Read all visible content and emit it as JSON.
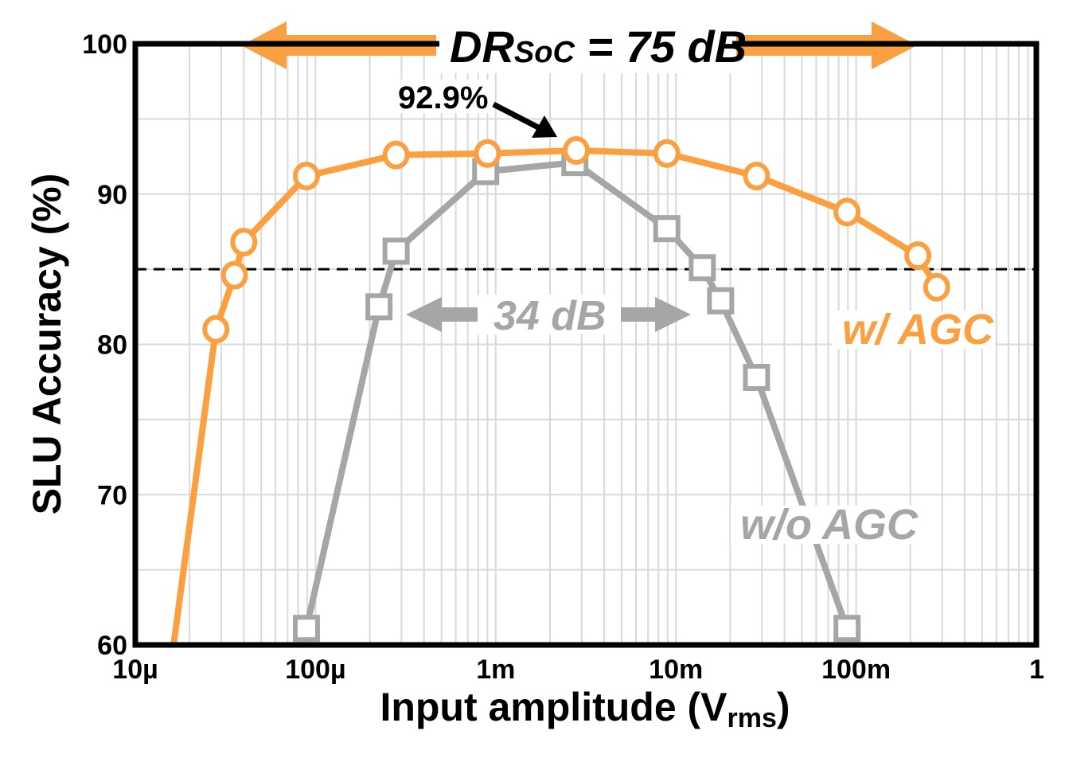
{
  "chart_data": {
    "type": "line",
    "title": "",
    "xlabel": "Input amplitude (V",
    "xlabel_sub": "rms",
    "xlabel_end": ")",
    "ylabel": "SLU Accuracy (%)",
    "xscale": "log",
    "xlim": [
      1e-05,
      1
    ],
    "ylim": [
      60,
      100
    ],
    "grid": true,
    "x_ticks": [
      1e-05,
      0.0001,
      0.001,
      0.01,
      0.1,
      1
    ],
    "x_tick_labels": [
      "10µ",
      "100µ",
      "1m",
      "10m",
      "100m",
      "1"
    ],
    "y_ticks": [
      60,
      70,
      80,
      90,
      100
    ],
    "y_tick_labels": [
      "60",
      "70",
      "80",
      "90",
      "100"
    ],
    "threshold": 85,
    "series": [
      {
        "name": "w/ AGC",
        "color": "#FBA040",
        "marker": "circle",
        "x": [
          1.63e-05,
          2.8e-05,
          3.55e-05,
          4e-05,
          8.9e-05,
          0.00028,
          0.0009,
          0.0028,
          0.0089,
          0.028,
          0.089,
          0.22,
          0.28
        ],
        "y": [
          60,
          81.0,
          84.6,
          86.8,
          91.2,
          92.6,
          92.7,
          92.9,
          92.7,
          91.2,
          88.8,
          85.9,
          83.8
        ],
        "marker_from": 1
      },
      {
        "name": "w/o AGC",
        "color": "#A6A6A6",
        "marker": "square",
        "x": [
          8.9e-05,
          0.000225,
          0.00028,
          0.00088,
          0.00275,
          0.0089,
          0.014,
          0.0177,
          0.028,
          0.089
        ],
        "y": [
          61.1,
          82.5,
          86.2,
          91.5,
          92.1,
          87.7,
          85.1,
          82.9,
          77.8,
          61.1
        ],
        "marker_from": 0
      }
    ],
    "annotations": {
      "dr_main": "DR",
      "dr_sub": "SoC",
      "dr_value": " = 75 dB",
      "dr_color": "#FBA040",
      "peak": "92.9%",
      "range_noagc": "34 dB",
      "label_agc": "w/ AGC",
      "label_noagc": "w/o AGC"
    }
  }
}
